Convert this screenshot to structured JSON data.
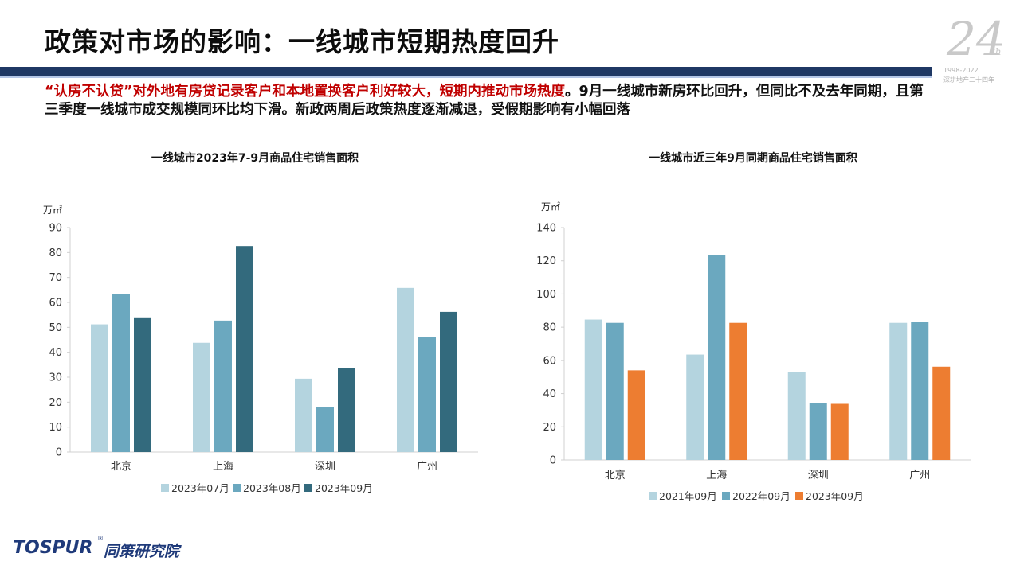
{
  "page": {
    "title": "政策对市场的影响：一线城市短期热度回升",
    "summary_highlight": "“认房不认贷”对外地有房贷记录客户和本地置换客户利好较大，短期内推动市场热度",
    "summary_rest": "。9月一线城市新房环比回升，但同比不及去年同期，且第三季度一线城市成交规模同环比均下滑。新政两周后政策热度逐渐减退，受假期影响有小幅回落",
    "badge_number": "24",
    "badge_sup": "th",
    "badge_years": "1998-2022",
    "badge_text": "深耕地产二十四年",
    "logo_text": "TOSPUR",
    "logo_reg": "®",
    "logo_cn": "同策研究院"
  },
  "colors": {
    "light_blue": "#b4d4df",
    "mid_blue": "#6ba8bf",
    "dark_teal": "#336a7d",
    "orange": "#ed7d31",
    "header_navy": "#1f3864",
    "highlight_red": "#c00000"
  },
  "chart_data": [
    {
      "type": "bar",
      "title": "一线城市2023年7-9月商品住宅销售面积",
      "unit": "万㎡",
      "categories": [
        "北京",
        "上海",
        "深圳",
        "广州"
      ],
      "ylim": [
        0,
        90
      ],
      "yticks": [
        0,
        10,
        20,
        30,
        40,
        50,
        60,
        70,
        80,
        90
      ],
      "grid": false,
      "legend_position": "bottom",
      "series": [
        {
          "name": "2023年07月",
          "color": "#b4d4df",
          "values": [
            51.2,
            43.8,
            29.4,
            65.8
          ]
        },
        {
          "name": "2023年08月",
          "color": "#6ba8bf",
          "values": [
            63.2,
            52.7,
            18.0,
            46.1
          ]
        },
        {
          "name": "2023年09月",
          "color": "#336a7d",
          "values": [
            54.0,
            82.6,
            33.8,
            56.2
          ]
        }
      ]
    },
    {
      "type": "bar",
      "title": "一线城市近三年9月同期商品住宅销售面积",
      "unit": "万㎡",
      "categories": [
        "北京",
        "上海",
        "深圳",
        "广州"
      ],
      "ylim": [
        0,
        140
      ],
      "yticks": [
        0,
        20,
        40,
        60,
        80,
        100,
        120,
        140
      ],
      "grid": false,
      "legend_position": "bottom",
      "series": [
        {
          "name": "2021年09月",
          "color": "#b4d4df",
          "values": [
            84.6,
            63.5,
            52.8,
            82.6
          ]
        },
        {
          "name": "2022年09月",
          "color": "#6ba8bf",
          "values": [
            82.6,
            123.6,
            34.4,
            83.4
          ]
        },
        {
          "name": "2023年09月",
          "color": "#ed7d31",
          "values": [
            54.0,
            82.6,
            33.8,
            56.2
          ]
        }
      ]
    }
  ]
}
